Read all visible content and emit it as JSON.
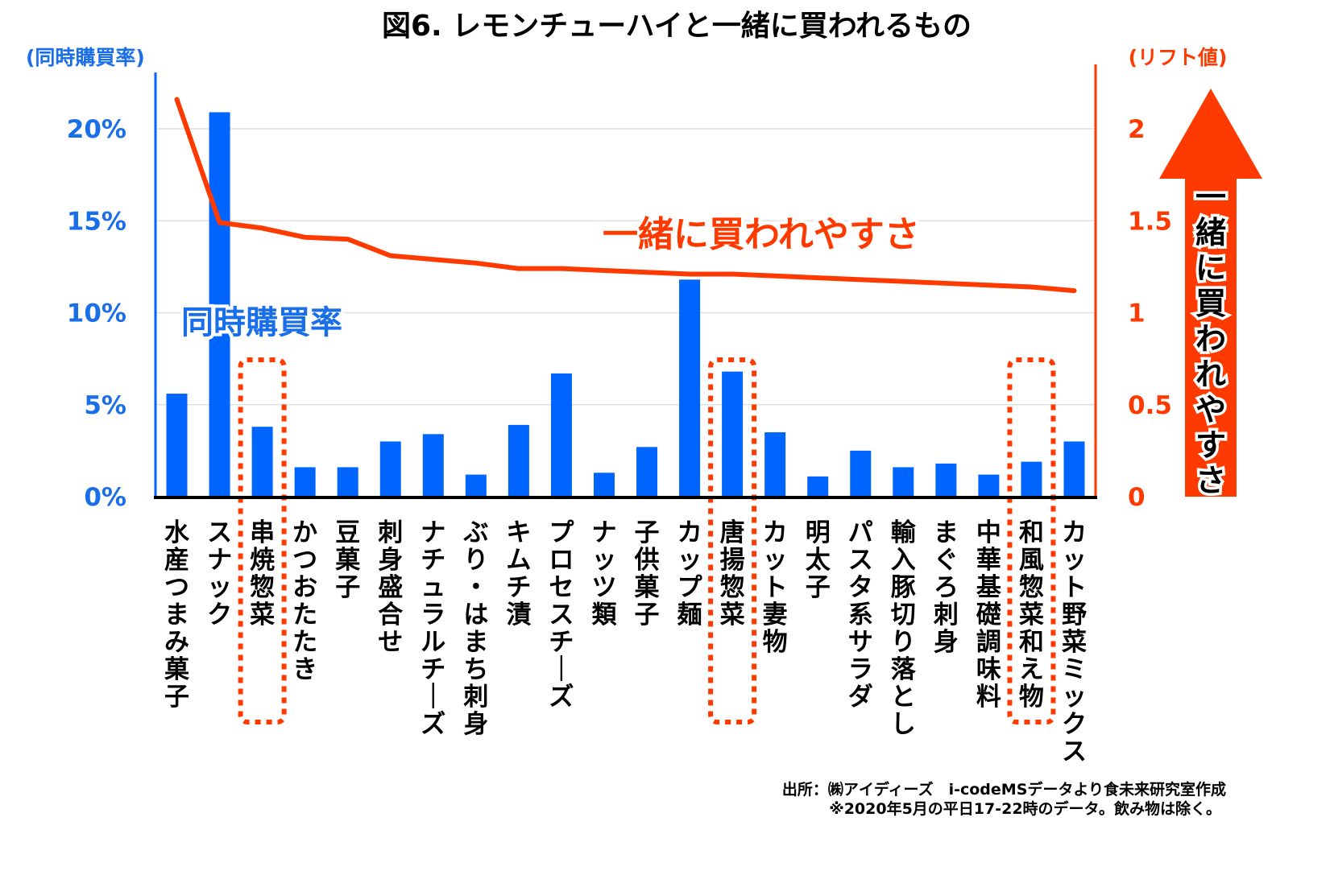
{
  "chart_data": {
    "type": "bar",
    "title": "図6. レモンチューハイと一緒に買われるもの",
    "xlabel": "",
    "ylabel": "(同時購買率)",
    "ylabel_right": "(リフト値)",
    "ylim": [
      0,
      22
    ],
    "ylim_right": [
      0,
      2.2
    ],
    "yticks": [
      "0%",
      "5%",
      "10%",
      "15%",
      "20%"
    ],
    "ytick_values": [
      0,
      5,
      10,
      15,
      20
    ],
    "yticks_right": [
      "0",
      "0.5",
      "1",
      "1.5",
      "2"
    ],
    "ytick_right_values": [
      0,
      0.5,
      1,
      1.5,
      2
    ],
    "grid": true,
    "categories": [
      "水産つまみ菓子",
      "スナック",
      "串焼惣菜",
      "かつおたたき",
      "豆菓子",
      "刺身盛合せ",
      "ナチュラルチーズ",
      "ぶり・はまち刺身",
      "キムチ漬",
      "プロセスチーズ",
      "ナッツ類",
      "子供菓子",
      "カップ麺",
      "唐揚惣菜",
      "カット妻物",
      "明太子",
      "パスタ系サラダ",
      "輸入豚切り落とし",
      "まぐろ刺身",
      "中華基礎調味料",
      "和風惣菜和え物",
      "カット野菜ミックス"
    ],
    "series": [
      {
        "name": "同時購買率",
        "type": "bar",
        "axis": "left",
        "unit": "%",
        "color": "#0064ff",
        "values": [
          5.6,
          20.9,
          3.8,
          1.6,
          1.6,
          3.0,
          3.4,
          1.2,
          3.9,
          6.7,
          1.3,
          2.7,
          11.8,
          6.8,
          3.5,
          1.1,
          2.5,
          1.6,
          1.8,
          1.2,
          1.9,
          3.0
        ]
      },
      {
        "name": "一緒に買われやすさ",
        "type": "line",
        "axis": "right",
        "unit": "リフト値",
        "color": "#ff3a00",
        "values": [
          2.16,
          1.49,
          1.46,
          1.41,
          1.4,
          1.31,
          1.29,
          1.27,
          1.24,
          1.24,
          1.23,
          1.22,
          1.21,
          1.21,
          1.2,
          1.19,
          1.18,
          1.17,
          1.16,
          1.15,
          1.14,
          1.12
        ]
      }
    ],
    "highlighted_categories": [
      "串焼惣菜",
      "唐揚惣菜",
      "和風惣菜和え物"
    ],
    "annotations": {
      "bar_series_label": "同時購買率",
      "line_series_label": "一緒に買われやすさ",
      "arrow_label": "一緒に買われやすさ"
    },
    "legend": "none"
  },
  "notes": {
    "source": "出所：㈱アイディーズ　i-codeMSデータより食未来研究室作成",
    "footnote": "※2020年5月の平日17-22時のデータ。飲み物は除く。"
  },
  "colors": {
    "bar": "#0064ff",
    "line": "#ff3a00",
    "left_axis": "#1a6fe8",
    "right_axis": "#ff3a00",
    "highlight": "#ff3a00",
    "grid": "#e0e0e0"
  }
}
